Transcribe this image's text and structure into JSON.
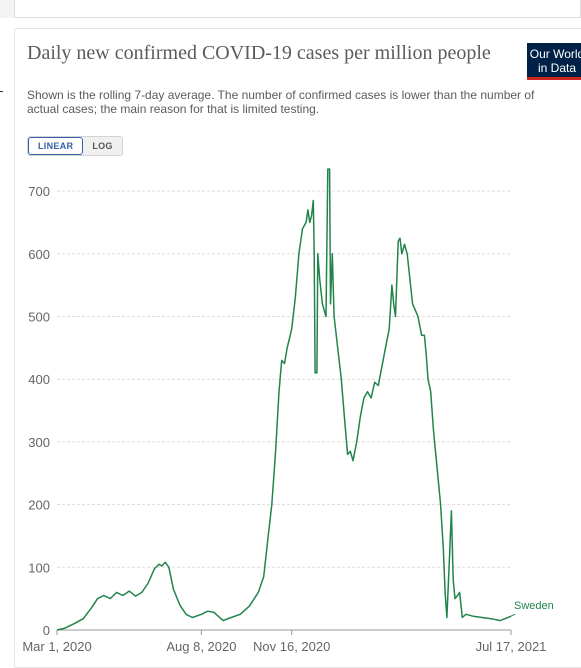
{
  "header": {
    "title": "Daily new confirmed COVID-19 cases per million people",
    "subtitle": "Shown is the rolling 7-day average. The number of confirmed cases is lower than the number of actual cases; the main reason for that is limited testing.",
    "logo_line1": "Our World",
    "logo_line2": "in Data"
  },
  "scale_toggle": {
    "options": [
      "LINEAR",
      "LOG"
    ],
    "selected": "LINEAR"
  },
  "colors": {
    "series": "#22844a",
    "logo_bg": "#002147",
    "logo_accent": "#ce261e",
    "toggle_active": "#3360a9"
  },
  "chart_data": {
    "type": "line",
    "title": "Daily new confirmed COVID-19 cases per million people",
    "ylim": [
      0,
      740
    ],
    "yticks": [
      0,
      100,
      200,
      300,
      400,
      500,
      600,
      700
    ],
    "ytick_labels": [
      "0",
      "100",
      "200",
      "300",
      "400",
      "500",
      "600",
      "700"
    ],
    "x_range": [
      "2020-03-01",
      "2021-07-17"
    ],
    "xtick_labels": [
      "Mar 1, 2020",
      "Aug 8, 2020",
      "Nov 16, 2020",
      "Jul 17, 2021"
    ],
    "xtick_dates": [
      "2020-03-01",
      "2020-08-08",
      "2020-11-16",
      "2021-07-17"
    ],
    "grid": "horizontal dashed",
    "series": [
      {
        "name": "Sweden",
        "points": [
          [
            "2020-03-01",
            0
          ],
          [
            "2020-03-10",
            3
          ],
          [
            "2020-03-20",
            10
          ],
          [
            "2020-03-30",
            18
          ],
          [
            "2020-04-08",
            35
          ],
          [
            "2020-04-15",
            50
          ],
          [
            "2020-04-22",
            55
          ],
          [
            "2020-04-29",
            50
          ],
          [
            "2020-05-06",
            60
          ],
          [
            "2020-05-13",
            55
          ],
          [
            "2020-05-20",
            62
          ],
          [
            "2020-05-27",
            54
          ],
          [
            "2020-06-03",
            60
          ],
          [
            "2020-06-10",
            75
          ],
          [
            "2020-06-17",
            98
          ],
          [
            "2020-06-22",
            105
          ],
          [
            "2020-06-25",
            102
          ],
          [
            "2020-06-29",
            108
          ],
          [
            "2020-07-03",
            100
          ],
          [
            "2020-07-08",
            65
          ],
          [
            "2020-07-15",
            40
          ],
          [
            "2020-07-22",
            25
          ],
          [
            "2020-07-29",
            20
          ],
          [
            "2020-08-08",
            25
          ],
          [
            "2020-08-15",
            30
          ],
          [
            "2020-08-22",
            28
          ],
          [
            "2020-09-01",
            15
          ],
          [
            "2020-09-10",
            20
          ],
          [
            "2020-09-20",
            25
          ],
          [
            "2020-09-30",
            38
          ],
          [
            "2020-10-10",
            60
          ],
          [
            "2020-10-16",
            85
          ],
          [
            "2020-10-21",
            150
          ],
          [
            "2020-10-25",
            200
          ],
          [
            "2020-10-29",
            280
          ],
          [
            "2020-11-02",
            380
          ],
          [
            "2020-11-05",
            430
          ],
          [
            "2020-11-08",
            425
          ],
          [
            "2020-11-11",
            450
          ],
          [
            "2020-11-16",
            480
          ],
          [
            "2020-11-20",
            530
          ],
          [
            "2020-11-24",
            600
          ],
          [
            "2020-11-28",
            640
          ],
          [
            "2020-12-02",
            650
          ],
          [
            "2020-12-04",
            670
          ],
          [
            "2020-12-06",
            650
          ],
          [
            "2020-12-08",
            660
          ],
          [
            "2020-12-10",
            685
          ],
          [
            "2020-12-11",
            600
          ],
          [
            "2020-12-12",
            410
          ],
          [
            "2020-12-14",
            410
          ],
          [
            "2020-12-15",
            600
          ],
          [
            "2020-12-17",
            560
          ],
          [
            "2020-12-20",
            520
          ],
          [
            "2020-12-24",
            500
          ],
          [
            "2020-12-26",
            735
          ],
          [
            "2020-12-28",
            735
          ],
          [
            "2020-12-29",
            520
          ],
          [
            "2020-12-31",
            600
          ],
          [
            "2021-01-02",
            500
          ],
          [
            "2021-01-06",
            450
          ],
          [
            "2021-01-10",
            400
          ],
          [
            "2021-01-14",
            330
          ],
          [
            "2021-01-17",
            280
          ],
          [
            "2021-01-20",
            285
          ],
          [
            "2021-01-23",
            270
          ],
          [
            "2021-01-27",
            300
          ],
          [
            "2021-01-31",
            340
          ],
          [
            "2021-02-04",
            370
          ],
          [
            "2021-02-08",
            380
          ],
          [
            "2021-02-12",
            370
          ],
          [
            "2021-02-16",
            395
          ],
          [
            "2021-02-20",
            390
          ],
          [
            "2021-02-24",
            420
          ],
          [
            "2021-02-28",
            450
          ],
          [
            "2021-03-04",
            480
          ],
          [
            "2021-03-07",
            550
          ],
          [
            "2021-03-09",
            520
          ],
          [
            "2021-03-11",
            500
          ],
          [
            "2021-03-14",
            620
          ],
          [
            "2021-03-16",
            625
          ],
          [
            "2021-03-18",
            600
          ],
          [
            "2021-03-21",
            615
          ],
          [
            "2021-03-24",
            600
          ],
          [
            "2021-03-27",
            560
          ],
          [
            "2021-03-30",
            520
          ],
          [
            "2021-04-02",
            510
          ],
          [
            "2021-04-05",
            500
          ],
          [
            "2021-04-09",
            470
          ],
          [
            "2021-04-12",
            470
          ],
          [
            "2021-04-14",
            440
          ],
          [
            "2021-04-16",
            400
          ],
          [
            "2021-04-19",
            380
          ],
          [
            "2021-04-22",
            320
          ],
          [
            "2021-04-26",
            260
          ],
          [
            "2021-04-30",
            200
          ],
          [
            "2021-05-03",
            130
          ],
          [
            "2021-05-05",
            60
          ],
          [
            "2021-05-07",
            20
          ],
          [
            "2021-05-10",
            120
          ],
          [
            "2021-05-12",
            190
          ],
          [
            "2021-05-14",
            80
          ],
          [
            "2021-05-16",
            50
          ],
          [
            "2021-05-19",
            55
          ],
          [
            "2021-05-21",
            60
          ],
          [
            "2021-05-24",
            20
          ],
          [
            "2021-05-28",
            25
          ],
          [
            "2021-06-05",
            22
          ],
          [
            "2021-06-15",
            20
          ],
          [
            "2021-06-25",
            18
          ],
          [
            "2021-07-05",
            15
          ],
          [
            "2021-07-17",
            22
          ]
        ]
      }
    ]
  }
}
